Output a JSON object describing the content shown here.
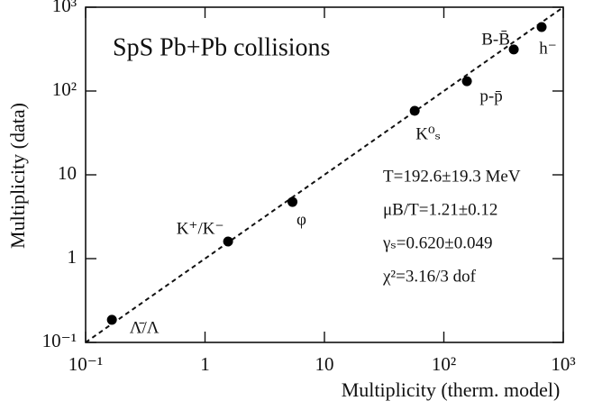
{
  "chart_data": {
    "type": "scatter",
    "title": "SpS  Pb+Pb collisions",
    "x_label": "Multiplicity (therm. model)",
    "y_label": "Multiplicity (data)",
    "log_x": true,
    "log_y": true,
    "color": "#000000",
    "x": [
      0.166,
      1.56,
      5.4,
      57,
      156,
      385,
      659
    ],
    "values": [
      0.186,
      1.6,
      4.75,
      58,
      131,
      313,
      580
    ],
    "point_labels": [
      "Λ̄/Λ",
      "K⁺/K⁻",
      "φ",
      "K⁰ₛ",
      "p-p̄",
      "B-B̄",
      "h⁻"
    ],
    "reference_line": {
      "x": [
        0.1,
        1000
      ],
      "values": [
        0.1,
        1000
      ],
      "style": "dashed"
    },
    "annotations": [
      "T=192.6±19.3 MeV",
      "μB/T=1.21±0.12",
      "γₛ=0.620±0.049",
      "χ²=3.16/3 dof"
    ],
    "xlim": [
      0.1,
      1000
    ],
    "ylim": [
      0.1,
      1000
    ],
    "xticks": [
      {
        "value": 0.1,
        "label": "10⁻¹"
      },
      1,
      10,
      {
        "value": 100,
        "label": "10²"
      },
      {
        "value": 1000,
        "label": "10³"
      }
    ],
    "yticks": [
      {
        "value": 0.1,
        "label": "10⁻¹"
      },
      1,
      10,
      {
        "value": 100,
        "label": "10²"
      },
      {
        "value": 1000,
        "label": "10³"
      }
    ]
  }
}
